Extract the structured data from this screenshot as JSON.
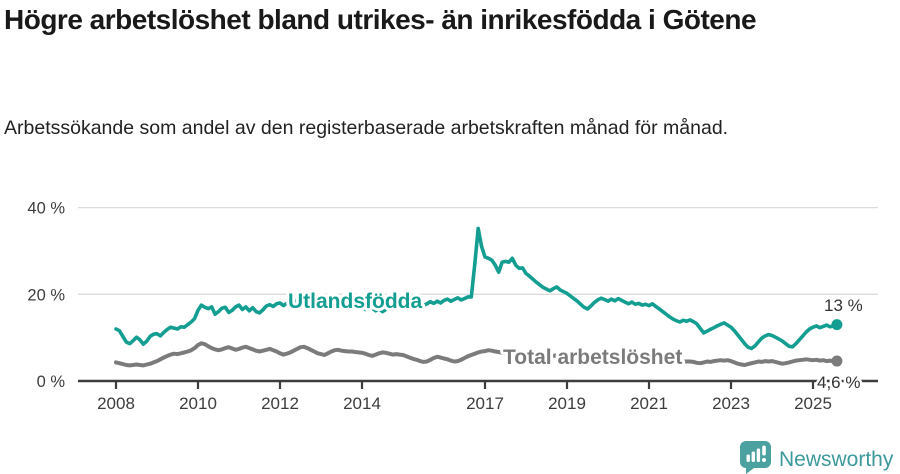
{
  "header": {
    "title": "Högre arbetslöshet bland utrikes- än inrikesfödda i Götene",
    "subtitle": "Arbetssökande som andel av den registerbaserade arbetskraften månad för månad."
  },
  "footer": {
    "brand": "Newsworthy",
    "brand_color": "#3e999b",
    "logo_icon": "bar-chart-speech-bubble-icon",
    "logo_color": "#4ba0a0"
  },
  "chart_data": {
    "type": "line",
    "title": "Högre arbetslöshet bland utrikes- än inrikesfödda i Götene",
    "xlabel": "",
    "ylabel": "Arbetssökande som andel av den registerbaserade arbetskraften",
    "unit": "%",
    "x_start": "2008-01",
    "x_end": "2025-08",
    "x_frequency": "monthly",
    "ylim": [
      0,
      42
    ],
    "grid": "horizontal",
    "legend_position": "inline-on-line",
    "y_ticks": [
      {
        "value": 40,
        "label": "40 %"
      },
      {
        "value": 20,
        "label": "20 %"
      },
      {
        "value": 0,
        "label": "0 %"
      }
    ],
    "x_ticks": [
      {
        "year": 2008,
        "label": "2008"
      },
      {
        "year": 2010,
        "label": "2010"
      },
      {
        "year": 2012,
        "label": "2012"
      },
      {
        "year": 2014,
        "label": "2014"
      },
      {
        "year": 2017,
        "label": "2017"
      },
      {
        "year": 2019,
        "label": "2019"
      },
      {
        "year": 2021,
        "label": "2021"
      },
      {
        "year": 2023,
        "label": "2023"
      },
      {
        "year": 2025,
        "label": "2025"
      }
    ],
    "series": [
      {
        "id": "utlandsfodda",
        "name": "Utlandsfödda",
        "color": "#149e92",
        "end_label": "13 %",
        "end_value": 13.0,
        "values": [
          12.0,
          11.6,
          10.3,
          9.0,
          8.6,
          9.3,
          10.1,
          9.5,
          8.5,
          9.2,
          10.3,
          10.8,
          10.9,
          10.4,
          11.2,
          11.9,
          12.4,
          12.2,
          12.0,
          12.5,
          12.4,
          13.0,
          13.6,
          14.4,
          16.3,
          17.5,
          17.0,
          16.7,
          17.1,
          15.4,
          16.0,
          16.8,
          17.0,
          15.8,
          16.3,
          17.1,
          17.5,
          16.5,
          17.1,
          16.2,
          16.9,
          16.0,
          15.7,
          16.4,
          17.3,
          17.6,
          17.2,
          17.8,
          18.0,
          17.4,
          17.9,
          18.3,
          18.0,
          18.7,
          18.5,
          18.2,
          17.8,
          18.4,
          18.6,
          18.3,
          18.5,
          18.0,
          18.8,
          18.3,
          17.6,
          18.1,
          17.5,
          17.0,
          17.4,
          17.8,
          17.2,
          17.6,
          17.0,
          16.5,
          17.2,
          16.8,
          16.2,
          16.7,
          16.0,
          16.5,
          17.1,
          16.6,
          17.0,
          17.5,
          17.8,
          17.2,
          17.7,
          18.2,
          17.6,
          18.0,
          17.4,
          17.8,
          18.3,
          17.9,
          18.4,
          18.0,
          18.6,
          18.9,
          18.4,
          18.8,
          19.2,
          18.7,
          19.0,
          19.4,
          19.4,
          27.0,
          35.2,
          31.0,
          28.6,
          28.3,
          27.9,
          26.7,
          25.1,
          27.4,
          27.6,
          27.4,
          28.3,
          26.7,
          26.0,
          26.1,
          24.8,
          24.2,
          23.5,
          22.8,
          22.2,
          21.6,
          21.2,
          20.8,
          21.3,
          21.7,
          21.0,
          20.6,
          20.2,
          19.6,
          19.0,
          18.4,
          17.7,
          17.0,
          16.6,
          17.3,
          18.1,
          18.7,
          19.1,
          18.8,
          18.4,
          18.9,
          18.5,
          19.0,
          18.6,
          18.2,
          17.8,
          18.2,
          17.7,
          17.9,
          17.5,
          17.7,
          17.4,
          17.8,
          17.2,
          16.6,
          16.0,
          15.4,
          14.8,
          14.3,
          13.9,
          13.6,
          14.0,
          13.8,
          14.1,
          13.7,
          13.2,
          12.1,
          11.1,
          11.5,
          11.9,
          12.3,
          12.7,
          13.1,
          13.4,
          12.9,
          12.4,
          11.6,
          10.6,
          9.6,
          8.6,
          7.8,
          7.5,
          8.1,
          9.0,
          9.9,
          10.4,
          10.7,
          10.5,
          10.1,
          9.7,
          9.2,
          8.6,
          8.0,
          7.9,
          8.6,
          9.5,
          10.4,
          11.3,
          12.0,
          12.4,
          12.7,
          12.3,
          12.6,
          12.9,
          12.5,
          12.7,
          13.0
        ]
      },
      {
        "id": "total",
        "name": "Total arbetslöshet",
        "color": "#7b7b7b",
        "end_label": "4,6 %",
        "end_value": 4.6,
        "values": [
          4.3,
          4.1,
          3.9,
          3.7,
          3.6,
          3.7,
          3.8,
          3.7,
          3.6,
          3.8,
          4.0,
          4.3,
          4.6,
          5.0,
          5.4,
          5.8,
          6.1,
          6.3,
          6.2,
          6.4,
          6.6,
          6.8,
          7.1,
          7.6,
          8.3,
          8.7,
          8.5,
          8.0,
          7.6,
          7.3,
          7.1,
          7.3,
          7.6,
          7.8,
          7.5,
          7.2,
          7.4,
          7.7,
          7.9,
          7.6,
          7.3,
          7.0,
          6.8,
          7.0,
          7.2,
          7.4,
          7.1,
          6.8,
          6.4,
          6.1,
          6.3,
          6.6,
          7.0,
          7.4,
          7.8,
          7.9,
          7.6,
          7.2,
          6.8,
          6.4,
          6.2,
          6.0,
          6.4,
          6.8,
          7.1,
          7.2,
          7.0,
          6.9,
          6.8,
          6.8,
          6.7,
          6.6,
          6.5,
          6.3,
          6.0,
          5.8,
          6.1,
          6.4,
          6.6,
          6.5,
          6.3,
          6.1,
          6.2,
          6.1,
          6.0,
          5.7,
          5.4,
          5.1,
          4.9,
          4.6,
          4.4,
          4.5,
          4.9,
          5.3,
          5.6,
          5.4,
          5.2,
          5.0,
          4.7,
          4.5,
          4.6,
          4.9,
          5.3,
          5.7,
          6.0,
          6.3,
          6.6,
          6.8,
          6.9,
          7.1,
          7.0,
          6.8,
          6.7,
          6.5,
          6.4,
          6.5,
          6.6,
          6.7,
          6.6,
          6.5,
          6.4,
          6.2,
          6.1,
          5.9,
          5.8,
          5.7,
          5.6,
          5.7,
          5.8,
          5.9,
          5.8,
          5.7,
          5.6,
          5.5,
          5.4,
          5.3,
          5.2,
          5.1,
          5.0,
          5.1,
          5.2,
          5.3,
          5.4,
          5.5,
          5.8,
          6.1,
          6.4,
          6.6,
          6.5,
          6.4,
          6.2,
          6.0,
          5.9,
          5.8,
          5.7,
          5.6,
          5.5,
          5.4,
          5.3,
          5.2,
          5.1,
          5.0,
          4.9,
          4.8,
          4.7,
          4.6,
          4.5,
          4.5,
          4.5,
          4.4,
          4.2,
          4.1,
          4.3,
          4.5,
          4.4,
          4.6,
          4.7,
          4.8,
          4.7,
          4.8,
          4.6,
          4.3,
          4.0,
          3.8,
          3.7,
          3.9,
          4.1,
          4.3,
          4.5,
          4.4,
          4.6,
          4.5,
          4.6,
          4.4,
          4.2,
          4.0,
          4.1,
          4.3,
          4.5,
          4.7,
          4.8,
          4.9,
          5.0,
          4.9,
          4.8,
          4.9,
          4.7,
          4.8,
          4.6,
          4.7,
          4.5,
          4.6
        ]
      }
    ]
  }
}
